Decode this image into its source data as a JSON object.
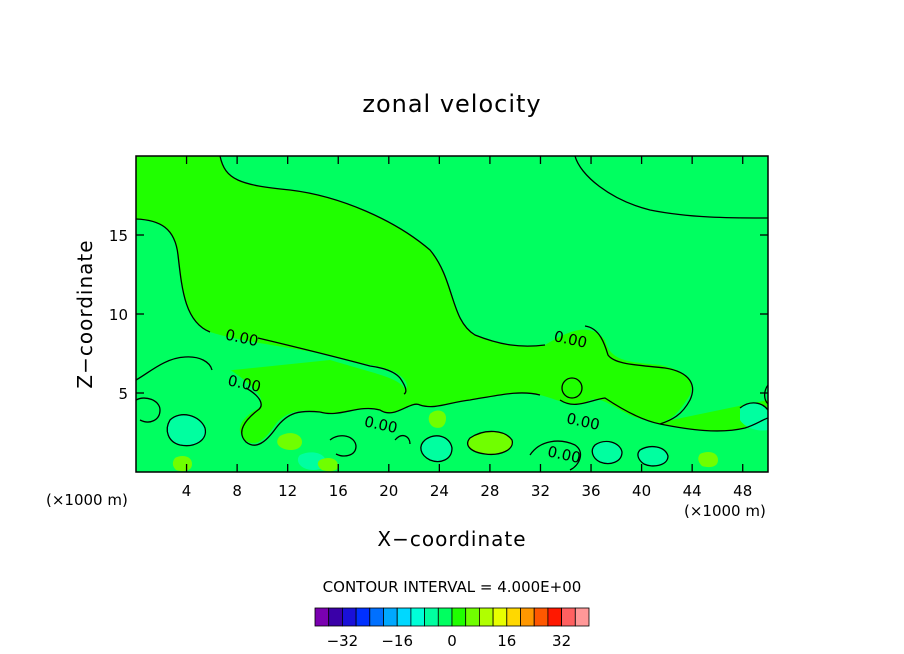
{
  "chart_data": {
    "type": "contour",
    "title": "zonal velocity",
    "xlabel": "X−coordinate",
    "ylabel": "Z−coordinate",
    "x_unit_left": "(×1000 m)",
    "x_unit_right": "(×1000 m)",
    "xlim": [
      0,
      50
    ],
    "ylim": [
      0,
      20
    ],
    "x_ticks": [
      4,
      8,
      12,
      16,
      20,
      24,
      28,
      32,
      36,
      40,
      44,
      48
    ],
    "x_tick_labels": [
      "4",
      "8",
      "12",
      "16",
      "20",
      "24",
      "28",
      "32",
      "36",
      "40",
      "44",
      "48"
    ],
    "y_ticks": [
      5,
      10,
      15
    ],
    "y_tick_labels": [
      "5",
      "10",
      "15"
    ],
    "contour_interval_text": "CONTOUR INTERVAL = 4.000E+00",
    "contour_labels": [
      {
        "text": "0.00",
        "x": 7.0,
        "y": 8.4
      },
      {
        "text": "0.00",
        "x": 7.2,
        "y": 5.5
      },
      {
        "text": "0.00",
        "x": 18.0,
        "y": 2.9
      },
      {
        "text": "0.00",
        "x": 33.0,
        "y": 8.3
      },
      {
        "text": "0.00",
        "x": 34.0,
        "y": 3.1
      },
      {
        "text": "0.00",
        "x": 32.5,
        "y": 1.0
      }
    ],
    "colorbar": {
      "levels": [
        "-36",
        "-32",
        "-28",
        "-24",
        "-20",
        "-16",
        "-12",
        "-8",
        "-4",
        "0",
        "4",
        "8",
        "12",
        "16",
        "20",
        "24",
        "28",
        "32",
        "36"
      ],
      "colors": [
        "#7a00b0",
        "#3a00a8",
        "#1a10d8",
        "#0030ff",
        "#0070ff",
        "#00a8ff",
        "#00d8ff",
        "#00ffd8",
        "#00ffa0",
        "#00ff60",
        "#20ff00",
        "#70ff00",
        "#b0ff00",
        "#e8ff00",
        "#ffd800",
        "#ff9800",
        "#ff5800",
        "#ff1800",
        "#ff6060",
        "#ff9898"
      ],
      "tick_values": [
        -32,
        -16,
        0,
        16,
        32
      ],
      "tick_labels": [
        "−32",
        "−16",
        "0",
        "16",
        "32"
      ]
    },
    "fill_colors": {
      "background": "#20ff00",
      "upper_region": "#00ff60",
      "lower_mix": "#00ffa0",
      "positive_core": "#70ff00",
      "strong_positive": "#b0ff00"
    }
  }
}
